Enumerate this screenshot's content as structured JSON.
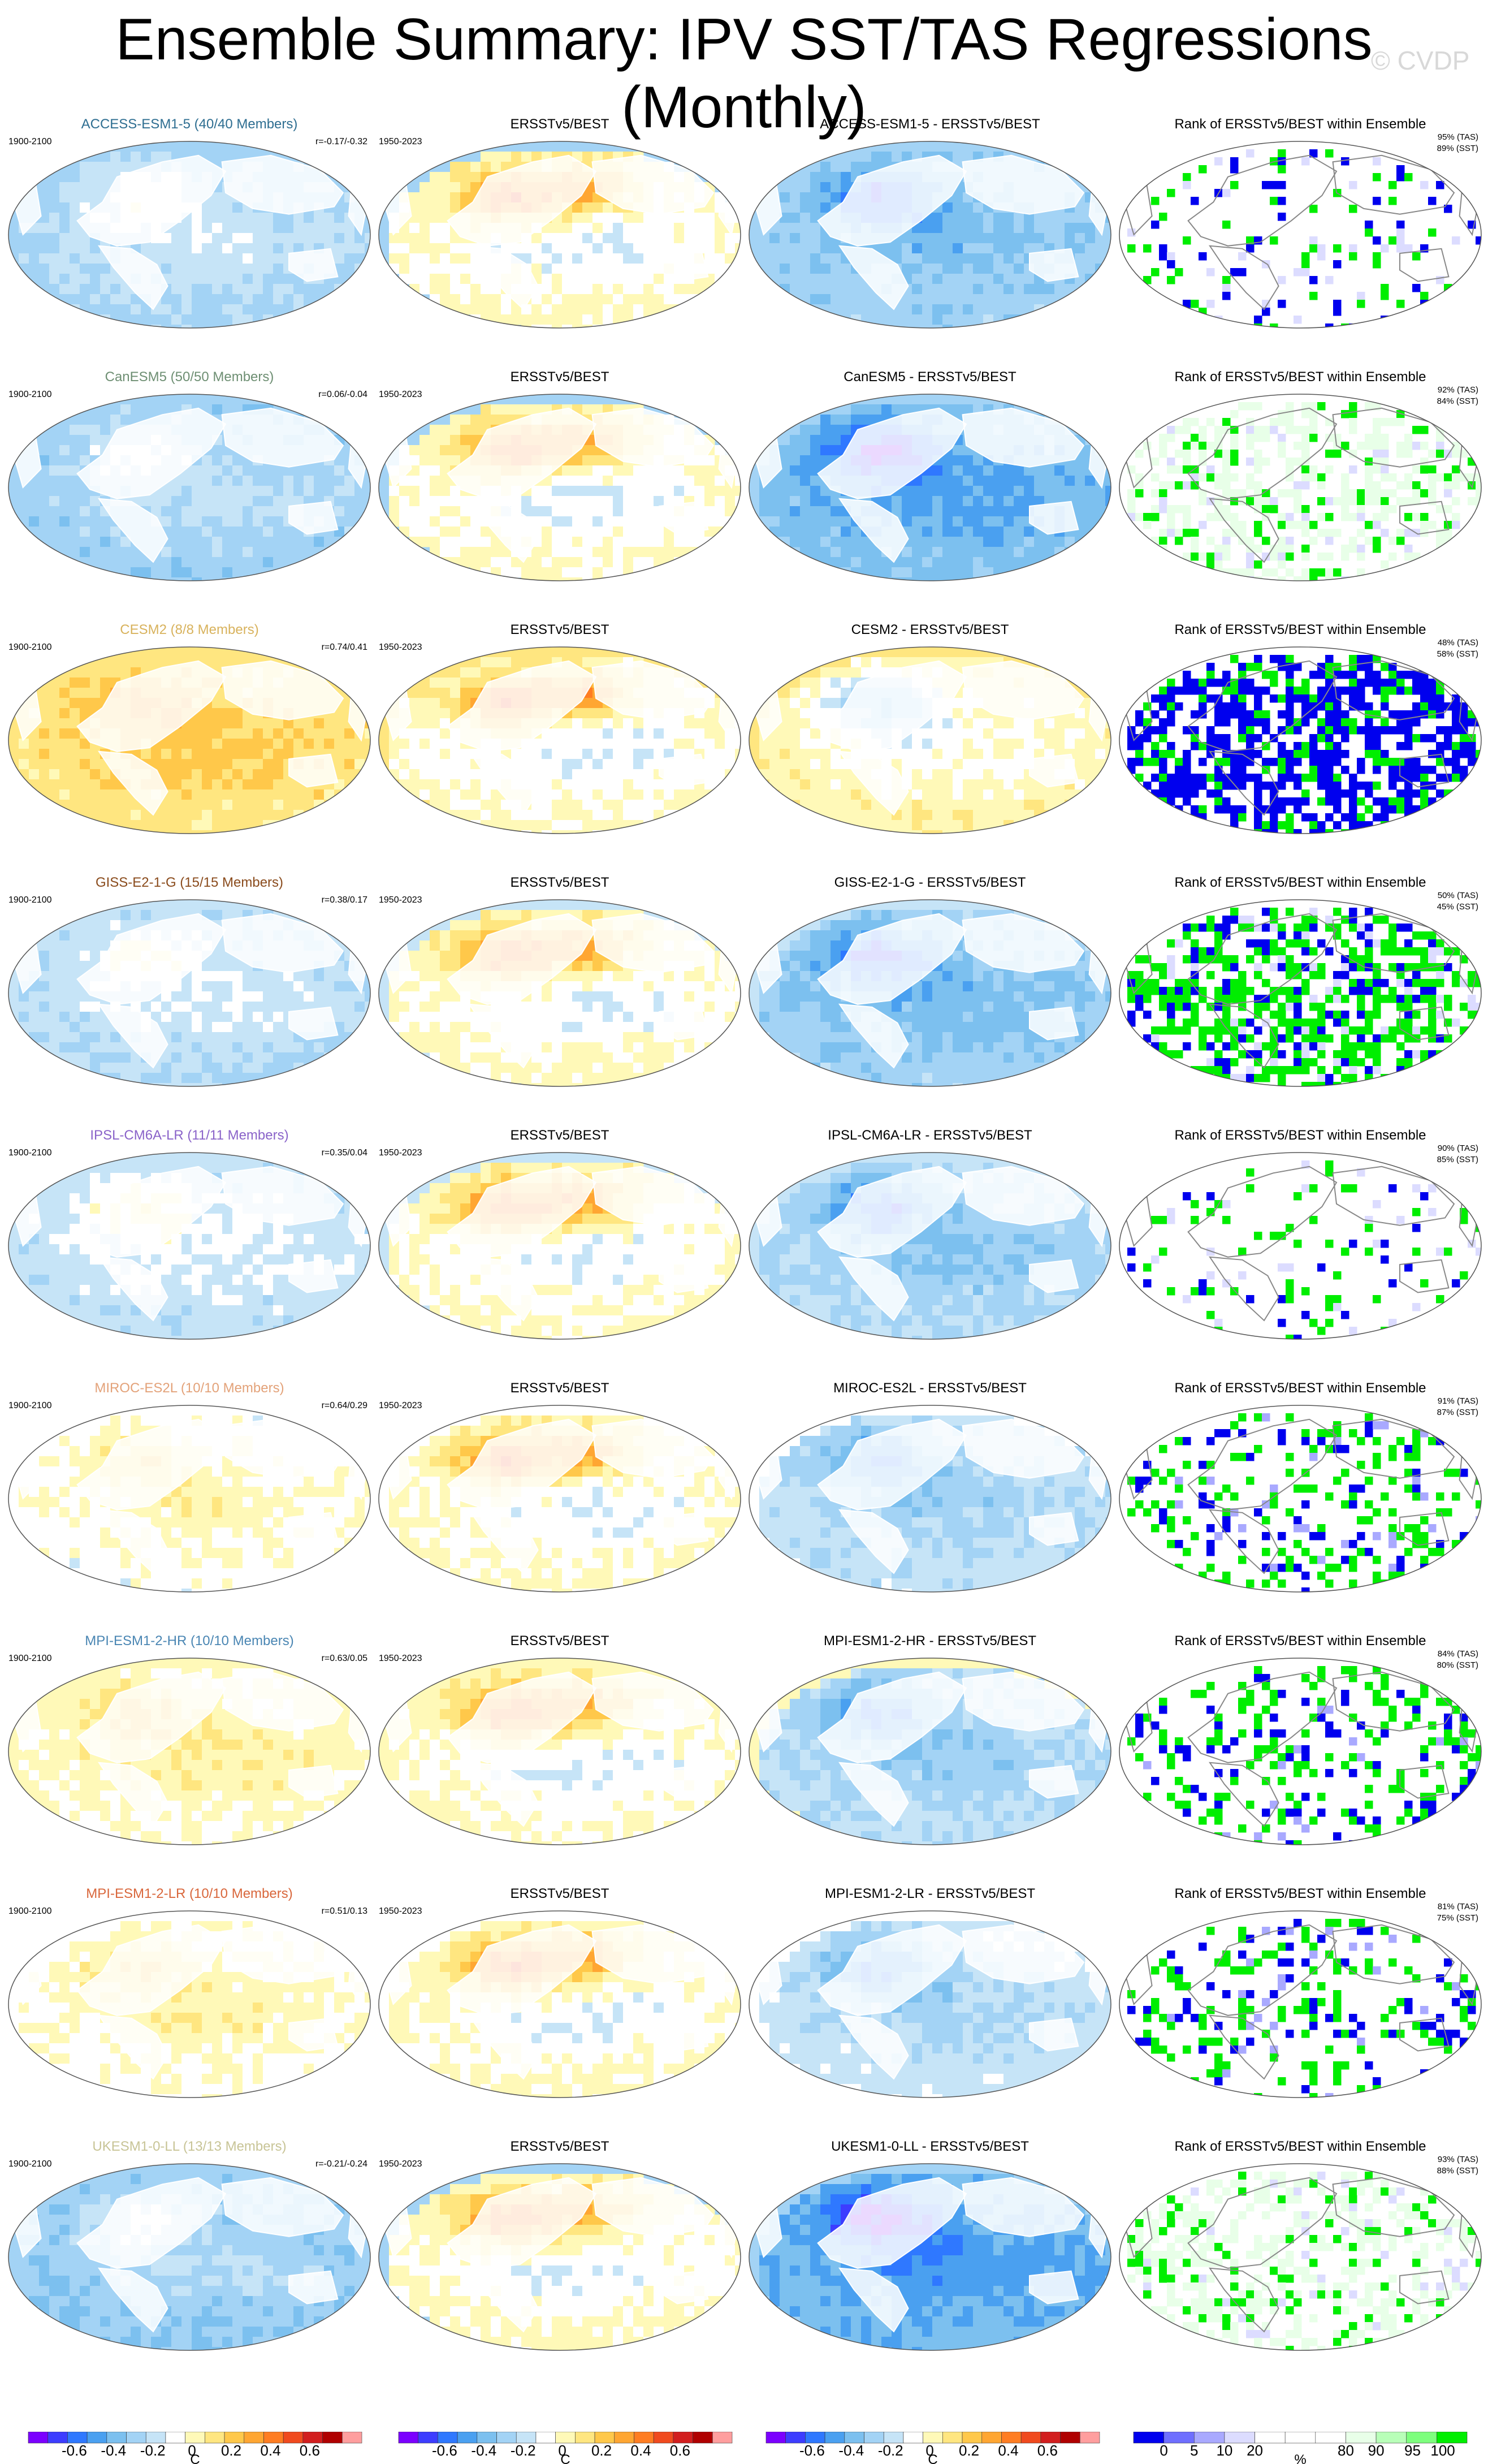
{
  "title": "Ensemble Summary: IPV SST/TAS Regressions (Monthly)",
  "watermark": "© CVDP",
  "column_titles": {
    "obs": "ERSSTv5/BEST",
    "rank": "Rank of ERSSTv5/BEST within Ensemble"
  },
  "model_period": "1900-2100",
  "obs_period": "1950-2023",
  "colors": {
    "model_palette": [
      "#7b00ff",
      "#3d3dff",
      "#2f78ff",
      "#4aa0f0",
      "#7cc0ef",
      "#a3d3f5",
      "#c6e4f7",
      "#ffffff",
      "#fff9b8",
      "#ffe680",
      "#ffc84a",
      "#ffa632",
      "#ff7d22",
      "#f04a1e",
      "#d21e1e",
      "#b00000",
      "#ff9e9e"
    ],
    "rank_palette": [
      "#0000ee",
      "#6f6fff",
      "#a9a9ff",
      "#dcdcff",
      "#ffffff",
      "#ffffff",
      "#ffffff",
      "#e8ffe8",
      "#b8ffb8",
      "#7dff7d",
      "#00ee00"
    ],
    "land": "#ffffff",
    "border": "#888888"
  },
  "models": [
    {
      "label": "ACCESS-ESM1-5 (40/40 Members)",
      "name": "ACCESS-ESM1-5",
      "label_color": "#2e6e91",
      "r": "r=-0.17/-0.32",
      "tas": "95% (TAS)",
      "sst": "89% (SST)",
      "bias": "cold",
      "base": -0.18,
      "diff_base": -0.2,
      "rank_style": "sparse"
    },
    {
      "label": "CanESM5 (50/50 Members)",
      "name": "CanESM5",
      "label_color": "#6e8f73",
      "r": "r=0.06/-0.04",
      "tas": "92% (TAS)",
      "sst": "84% (SST)",
      "bias": "cold",
      "base": -0.22,
      "diff_base": -0.28,
      "rank_style": "green-light"
    },
    {
      "label": "CESM2 (8/8 Members)",
      "name": "CESM2",
      "label_color": "#d8b25c",
      "r": "r=0.74/0.41",
      "tas": "48% (TAS)",
      "sst": "58% (SST)",
      "bias": "warm",
      "base": 0.18,
      "diff_base": 0.12,
      "rank_style": "blue-heavy"
    },
    {
      "label": "GISS-E2-1-G (15/15 Members)",
      "name": "GISS-E2-1-G",
      "label_color": "#8a4b1c",
      "r": "r=0.38/0.17",
      "tas": "50% (TAS)",
      "sst": "45% (SST)",
      "bias": "cold",
      "base": -0.15,
      "diff_base": -0.2,
      "rank_style": "green-heavy"
    },
    {
      "label": "IPSL-CM6A-LR (11/11 Members)",
      "name": "IPSL-CM6A-LR",
      "label_color": "#8a63c9",
      "r": "r=0.35/0.04",
      "tas": "90% (TAS)",
      "sst": "85% (SST)",
      "bias": "cold",
      "base": -0.12,
      "diff_base": -0.15,
      "rank_style": "sparse"
    },
    {
      "label": "MIROC-ES2L (10/10 Members)",
      "name": "MIROC-ES2L",
      "label_color": "#e3a279",
      "r": "r=0.64/0.29",
      "tas": "91% (TAS)",
      "sst": "87% (SST)",
      "bias": "mixed",
      "base": 0.0,
      "diff_base": -0.1,
      "rank_style": "mixed"
    },
    {
      "label": "MPI-ESM1-2-HR (10/10 Members)",
      "name": "MPI-ESM1-2-HR",
      "label_color": "#4a86b3",
      "r": "r=0.63/0.05",
      "tas": "84% (TAS)",
      "sst": "80% (SST)",
      "bias": "warm",
      "base": 0.05,
      "diff_base": -0.12,
      "rank_style": "mixed"
    },
    {
      "label": "MPI-ESM1-2-LR (10/10 Members)",
      "name": "MPI-ESM1-2-LR",
      "label_color": "#d9673c",
      "r": "r=0.51/0.13",
      "tas": "81% (TAS)",
      "sst": "75% (SST)",
      "bias": "mixed",
      "base": 0.02,
      "diff_base": -0.08,
      "rank_style": "mixed"
    },
    {
      "label": "UKESM1-0-LL (13/13 Members)",
      "name": "UKESM1-0-LL",
      "label_color": "#c8c496",
      "r": "r=-0.21/-0.24",
      "tas": "93% (TAS)",
      "sst": "88% (SST)",
      "bias": "cold",
      "base": -0.25,
      "diff_base": -0.32,
      "rank_style": "green-light"
    }
  ],
  "colorbars": {
    "model_ticks": [
      "-0.6",
      "-0.4",
      "-0.2",
      "0",
      "0.2",
      "0.4",
      "0.6"
    ],
    "model_units": "C",
    "rank_ticks": [
      "0",
      "5",
      "10",
      "20",
      "80",
      "90",
      "95",
      "100"
    ],
    "rank_units": "%"
  }
}
